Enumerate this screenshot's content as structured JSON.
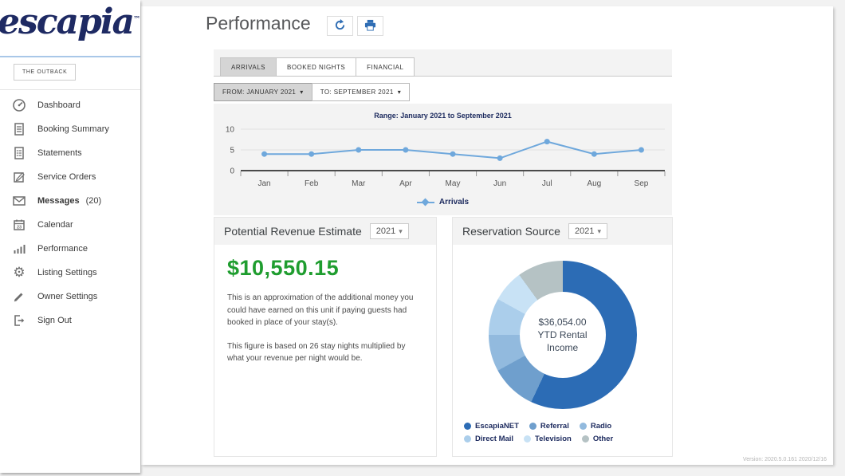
{
  "app": {
    "logo": "escapia",
    "logo_tm": "™",
    "version": "Version: 2020.5.0.161 2020/12/16"
  },
  "sidebar": {
    "property_button": "THE OUTBACK",
    "items": [
      {
        "label": "Dashboard",
        "icon": "dashboard-icon",
        "bold": false,
        "suffix": ""
      },
      {
        "label": "Booking Summary",
        "icon": "booking-summary-icon",
        "bold": false,
        "suffix": ""
      },
      {
        "label": "Statements",
        "icon": "statements-icon",
        "bold": false,
        "suffix": ""
      },
      {
        "label": "Service Orders",
        "icon": "service-orders-icon",
        "bold": false,
        "suffix": ""
      },
      {
        "label": "Messages",
        "icon": "messages-icon",
        "bold": true,
        "suffix": "(20)"
      },
      {
        "label": "Calendar",
        "icon": "calendar-icon",
        "bold": false,
        "suffix": ""
      },
      {
        "label": "Performance",
        "icon": "performance-icon",
        "bold": false,
        "suffix": ""
      },
      {
        "label": "Listing Settings",
        "icon": "gear-icon",
        "bold": false,
        "suffix": ""
      },
      {
        "label": "Owner Settings",
        "icon": "pencil-icon",
        "bold": false,
        "suffix": ""
      },
      {
        "label": "Sign Out",
        "icon": "sign-out-icon",
        "bold": false,
        "suffix": ""
      }
    ]
  },
  "header": {
    "title": "Performance"
  },
  "tabs": [
    {
      "label": "ARRIVALS",
      "active": true
    },
    {
      "label": "BOOKED NIGHTS",
      "active": false
    },
    {
      "label": "FINANCIAL",
      "active": false
    }
  ],
  "date_range": {
    "from_label": "FROM: JANUARY 2021",
    "to_label": "TO: SEPTEMBER 2021"
  },
  "chart_data": [
    {
      "type": "line",
      "title": "Range: January 2021 to September 2021",
      "categories": [
        "Jan",
        "Feb",
        "Mar",
        "Apr",
        "May",
        "Jun",
        "Jul",
        "Aug",
        "Sep"
      ],
      "series": [
        {
          "name": "Arrivals",
          "values": [
            4,
            4,
            5,
            5,
            4,
            3,
            7,
            4,
            5
          ],
          "color": "#6fa8dc"
        }
      ],
      "ylim": [
        0,
        10
      ],
      "yticks": [
        0,
        5,
        10
      ],
      "grid": true,
      "legend_position": "bottom"
    },
    {
      "type": "pie",
      "donut": true,
      "title": "Reservation Source",
      "center_text": {
        "line1": "$36,054.00",
        "line2": "YTD Rental Income"
      },
      "segments": [
        {
          "label": "EscapiaNET",
          "percent": 57,
          "color": "#2c6cb5"
        },
        {
          "label": "Referral",
          "percent": 10,
          "color": "#6f9fcd"
        },
        {
          "label": "Radio",
          "percent": 8,
          "color": "#92bade"
        },
        {
          "label": "Direct Mail",
          "percent": 8,
          "color": "#abceeb"
        },
        {
          "label": "Television",
          "percent": 7,
          "color": "#c8e2f5"
        },
        {
          "label": "Other",
          "percent": 10,
          "color": "#b5c2c4"
        }
      ],
      "legend_position": "bottom"
    }
  ],
  "revenue_card": {
    "title": "Potential Revenue Estimate",
    "year_selector": "2021",
    "amount": "$10,550.15",
    "description1": "This is an approximation of the additional money you could have earned on this unit if paying guests had booked in place of your stay(s).",
    "description2": "This figure is based on 26 stay nights multiplied by what your revenue per night would be."
  },
  "reservation_card": {
    "title": "Reservation Source",
    "year_selector": "2021"
  }
}
